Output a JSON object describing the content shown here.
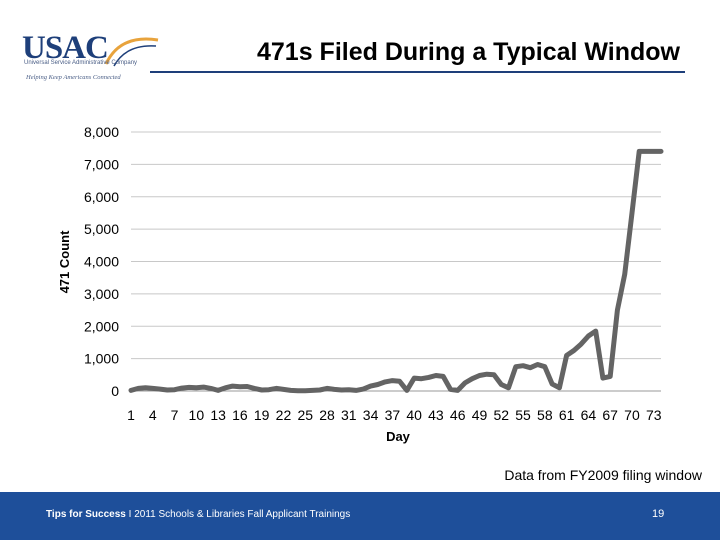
{
  "logo": {
    "name": "USAC",
    "subtitle": "Universal Service Administrative Company",
    "tagline": "Helping Keep Americans Connected"
  },
  "chart_data": {
    "type": "line",
    "title": "471s Filed During a Typical Window",
    "xlabel": "Day",
    "ylabel": "471 Count",
    "ylim": [
      0,
      8000
    ],
    "yticks": [
      0,
      1000,
      2000,
      3000,
      4000,
      5000,
      6000,
      7000,
      8000
    ],
    "ytick_labels": [
      "0",
      "1,000",
      "2,000",
      "3,000",
      "4,000",
      "5,000",
      "6,000",
      "7,000",
      "8,000"
    ],
    "xtick_labels": [
      "1",
      "4",
      "7",
      "10",
      "13",
      "16",
      "19",
      "22",
      "25",
      "28",
      "31",
      "34",
      "37",
      "40",
      "43",
      "46",
      "49",
      "52",
      "55",
      "58",
      "61",
      "64",
      "67",
      "70",
      "73"
    ],
    "grid": "horizontal",
    "legend": "none",
    "line_color": "#646464",
    "x": [
      1,
      2,
      3,
      4,
      5,
      6,
      7,
      8,
      9,
      10,
      11,
      12,
      13,
      14,
      15,
      16,
      17,
      18,
      19,
      20,
      21,
      22,
      23,
      24,
      25,
      26,
      27,
      28,
      29,
      30,
      31,
      32,
      33,
      34,
      35,
      36,
      37,
      38,
      39,
      40,
      41,
      42,
      43,
      44,
      45,
      46,
      47,
      48,
      49,
      50,
      51,
      52,
      53,
      54,
      55,
      56,
      57,
      58,
      59,
      60,
      61,
      62,
      63,
      64,
      65,
      66,
      67,
      68,
      69,
      70,
      71,
      72,
      73,
      74
    ],
    "values": [
      20,
      80,
      100,
      80,
      60,
      30,
      40,
      90,
      110,
      100,
      120,
      80,
      20,
      100,
      150,
      130,
      140,
      80,
      30,
      40,
      80,
      50,
      20,
      10,
      10,
      20,
      30,
      80,
      50,
      30,
      40,
      20,
      60,
      150,
      200,
      280,
      320,
      300,
      20,
      400,
      380,
      420,
      480,
      450,
      50,
      20,
      250,
      380,
      480,
      520,
      500,
      200,
      100,
      750,
      780,
      720,
      820,
      750,
      220,
      100,
      1100,
      1250,
      1450,
      1700,
      1850,
      400,
      450,
      2500,
      3600,
      5500,
      7400,
      7400,
      7400,
      7400
    ]
  },
  "note": "Data from FY2009 filing window",
  "footer": {
    "bold": "Tips for Success",
    "sep": " I ",
    "text": "2011 Schools & Libraries Fall Applicant Trainings",
    "page": "19"
  }
}
